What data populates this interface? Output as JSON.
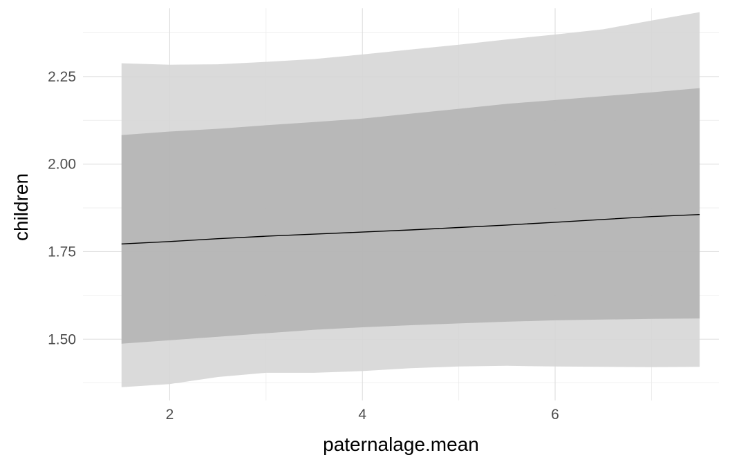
{
  "chart_data": {
    "type": "area",
    "title": "",
    "xlabel": "paternalage.mean",
    "ylabel": "children",
    "xlim": [
      1.1,
      7.7
    ],
    "ylim": [
      1.325,
      2.445
    ],
    "x_ticks": [
      2,
      4,
      6
    ],
    "x_tick_labels": [
      "2",
      "4",
      "6"
    ],
    "y_ticks": [
      1.5,
      1.75,
      2.0,
      2.25
    ],
    "y_tick_labels": [
      "1.50",
      "1.75",
      "2.00",
      "2.25"
    ],
    "grid": true,
    "legend": "none",
    "x": [
      1.5,
      2.0,
      2.5,
      3.0,
      3.5,
      4.0,
      4.5,
      5.0,
      5.5,
      6.0,
      6.5,
      7.0,
      7.5
    ],
    "series": [
      {
        "role": "outer-band",
        "color": "#d6d6d6",
        "lower": [
          1.363,
          1.372,
          1.392,
          1.404,
          1.404,
          1.409,
          1.417,
          1.422,
          1.424,
          1.422,
          1.421,
          1.42,
          1.421
        ],
        "upper": [
          2.288,
          2.284,
          2.285,
          2.292,
          2.3,
          2.313,
          2.327,
          2.341,
          2.356,
          2.37,
          2.385,
          2.41,
          2.434
        ]
      },
      {
        "role": "inner-band",
        "color": "#b2b2b2",
        "lower": [
          1.487,
          1.497,
          1.507,
          1.517,
          1.527,
          1.534,
          1.54,
          1.545,
          1.55,
          1.554,
          1.556,
          1.558,
          1.559
        ],
        "upper": [
          2.083,
          2.093,
          2.101,
          2.111,
          2.12,
          2.13,
          2.144,
          2.158,
          2.172,
          2.183,
          2.194,
          2.205,
          2.217
        ]
      },
      {
        "role": "mean-line",
        "color": "#000000",
        "values": [
          1.772,
          1.779,
          1.787,
          1.794,
          1.8,
          1.806,
          1.812,
          1.819,
          1.826,
          1.834,
          1.842,
          1.85,
          1.856
        ]
      }
    ]
  }
}
